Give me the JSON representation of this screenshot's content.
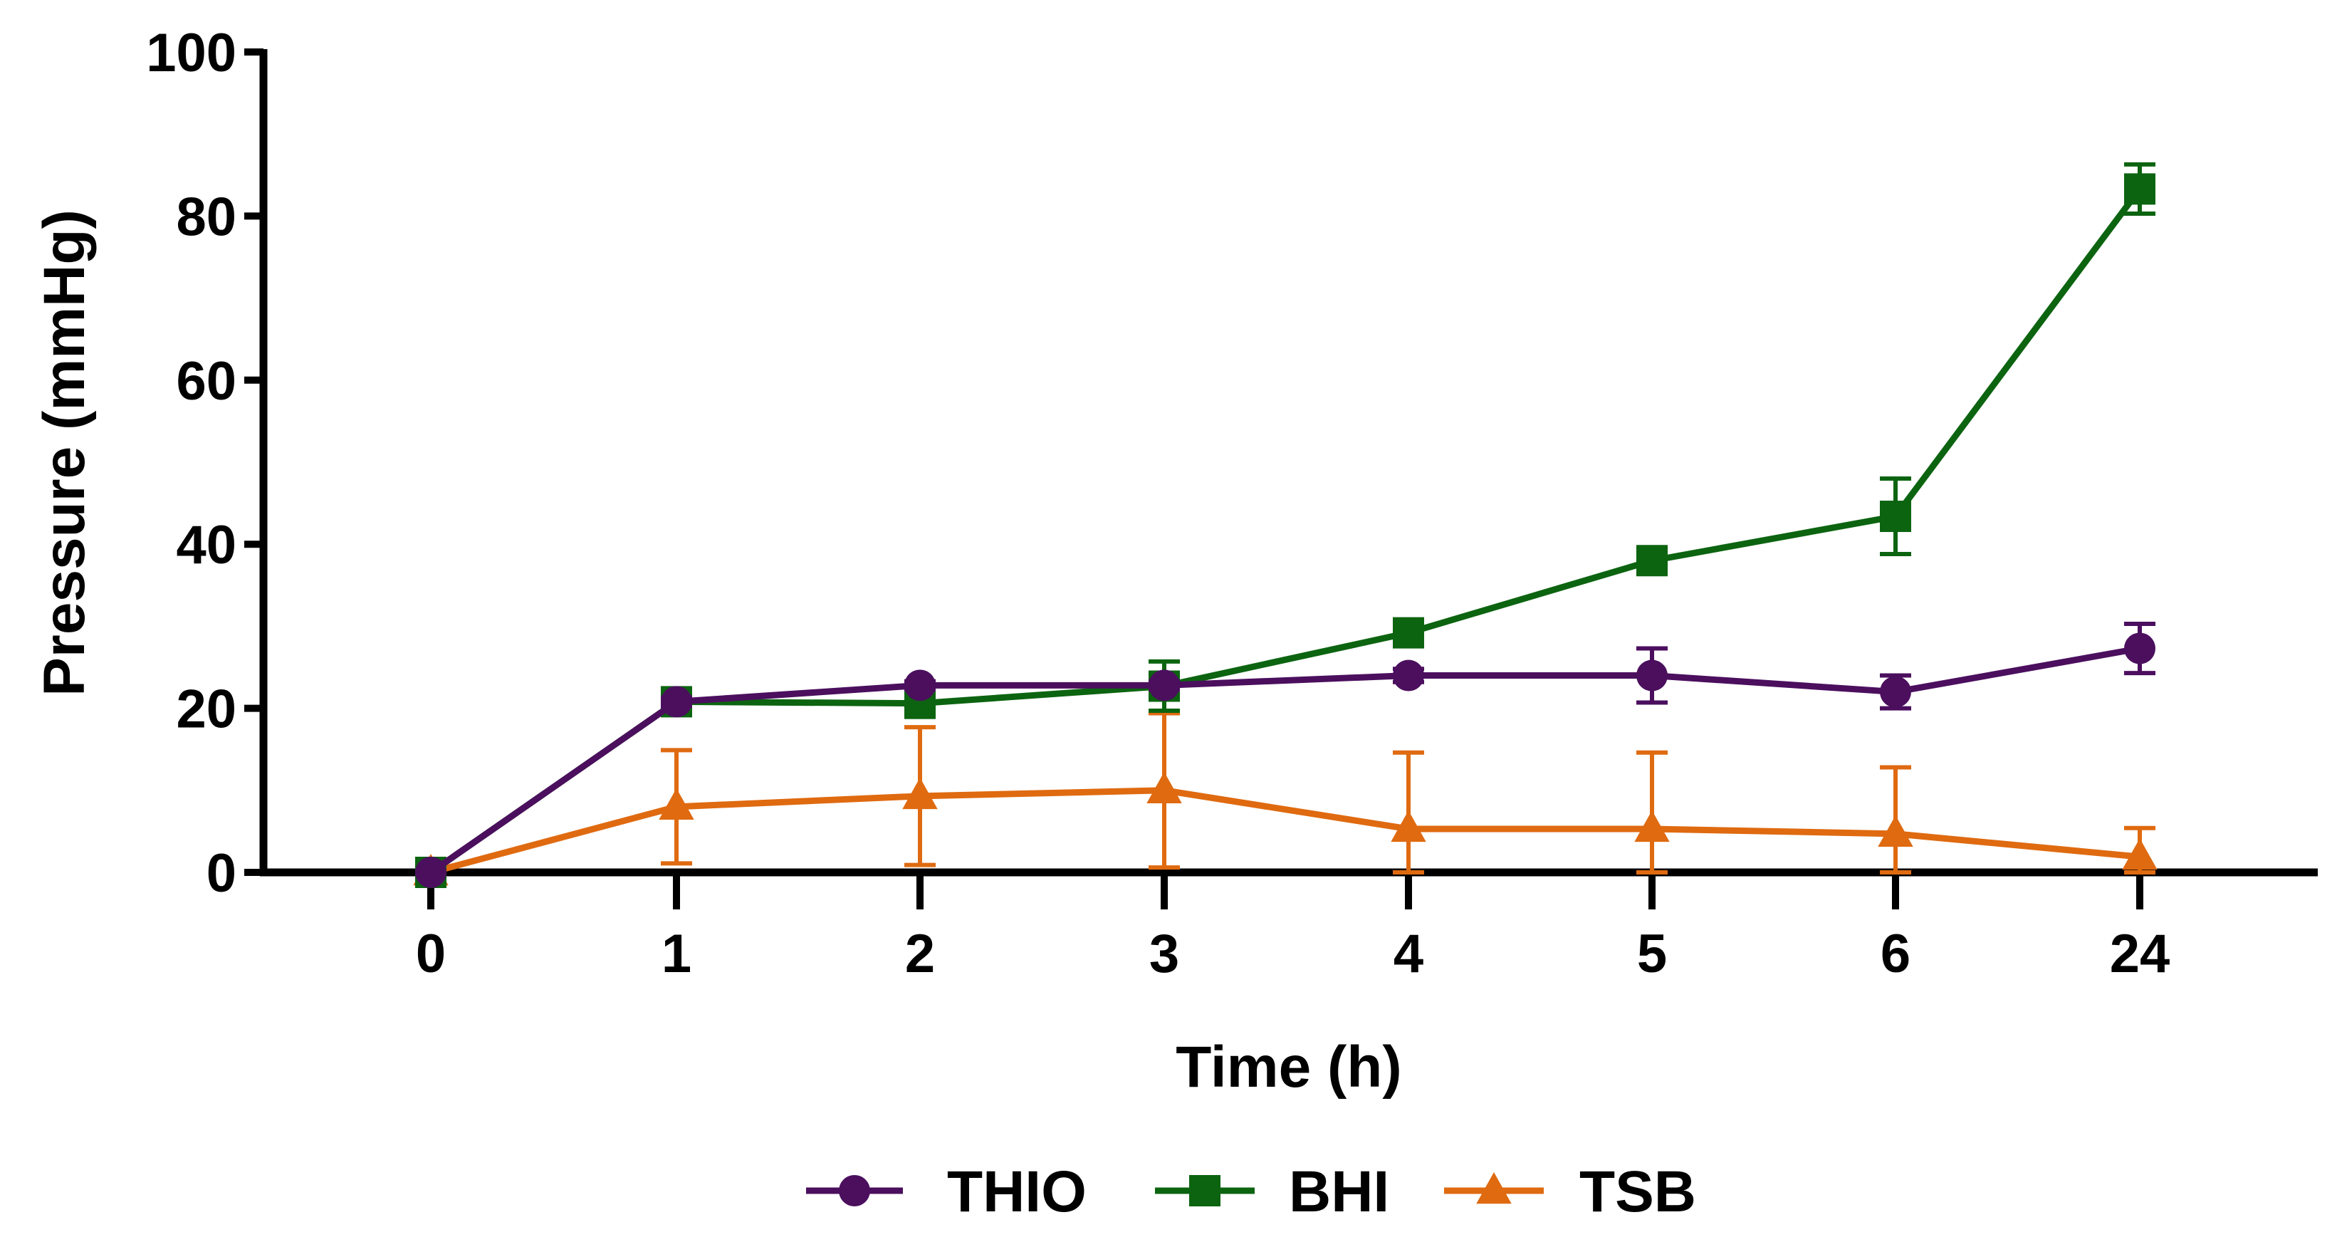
{
  "chart_data": {
    "type": "line",
    "title": "",
    "xlabel": "Time (h)",
    "ylabel": "Pressure (mmHg)",
    "categories": [
      "0",
      "1",
      "2",
      "3",
      "4",
      "5",
      "6",
      "24"
    ],
    "ylim": [
      0,
      100
    ],
    "yticks": [
      "0",
      "20",
      "40",
      "60",
      "80",
      "100"
    ],
    "grid": false,
    "legend_position": "bottom",
    "series": [
      {
        "name": "THIO",
        "color": "#4B0F5E",
        "marker": "circle",
        "values": [
          0,
          20.8,
          22.8,
          22.8,
          24.0,
          24.0,
          22.0,
          27.3
        ],
        "error": [
          0,
          0.5,
          0.5,
          0.5,
          0.8,
          3.3,
          2.0,
          3.0
        ]
      },
      {
        "name": "BHI",
        "color": "#0C6410",
        "marker": "square",
        "values": [
          0,
          20.8,
          20.6,
          22.7,
          29.2,
          38.0,
          43.4,
          83.3
        ],
        "error": [
          0,
          0.5,
          0.5,
          3.0,
          0.5,
          0.5,
          4.6,
          3.0
        ]
      },
      {
        "name": "TSB",
        "color": "#DF6A10",
        "marker": "triangle",
        "values": [
          0,
          8.0,
          9.3,
          10.0,
          5.3,
          5.3,
          4.7,
          1.9
        ],
        "error": [
          0,
          6.9,
          8.4,
          9.4,
          9.3,
          9.3,
          8.1,
          3.5
        ]
      }
    ]
  }
}
